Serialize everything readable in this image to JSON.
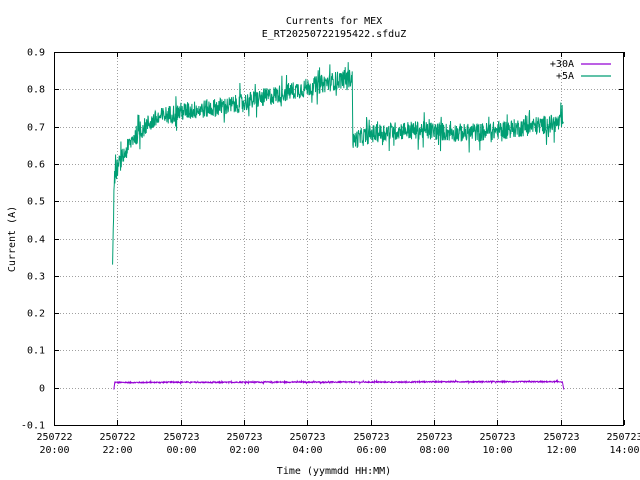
{
  "chart_data": {
    "type": "line",
    "title": "Currents for MEX",
    "subtitle": "E_RT20250722195422.sfduZ",
    "xlabel": "Time (yymmdd HH:MM)",
    "ylabel": "Current (A)",
    "xlim_hours": [
      20,
      38
    ],
    "ylim": [
      -0.1,
      0.9
    ],
    "grid": true,
    "legend_position": "top-right",
    "y_ticks": [
      "-0.1",
      "0",
      "0.1",
      "0.2",
      "0.3",
      "0.4",
      "0.5",
      "0.6",
      "0.7",
      "0.8",
      "0.9"
    ],
    "x_ticks": [
      {
        "date": "250722",
        "time": "20:00"
      },
      {
        "date": "250722",
        "time": "22:00"
      },
      {
        "date": "250723",
        "time": "00:00"
      },
      {
        "date": "250723",
        "time": "02:00"
      },
      {
        "date": "250723",
        "time": "04:00"
      },
      {
        "date": "250723",
        "time": "06:00"
      },
      {
        "date": "250723",
        "time": "08:00"
      },
      {
        "date": "250723",
        "time": "10:00"
      },
      {
        "date": "250723",
        "time": "12:00"
      },
      {
        "date": "250723",
        "time": "14:00"
      }
    ],
    "series": [
      {
        "name": "+30A",
        "color": "#9400d3",
        "x_hours": [
          21.89,
          21.92,
          22.0,
          23.0,
          24.0,
          25.0,
          26.0,
          27.0,
          28.0,
          29.0,
          30.0,
          31.0,
          32.0,
          33.0,
          34.0,
          35.0,
          36.0,
          36.05,
          36.1
        ],
        "values": [
          -0.005,
          0.015,
          0.014,
          0.014,
          0.015,
          0.014,
          0.015,
          0.015,
          0.015,
          0.015,
          0.015,
          0.015,
          0.016,
          0.016,
          0.016,
          0.016,
          0.016,
          0.016,
          -0.005
        ]
      },
      {
        "name": "+5A",
        "color": "#009e73",
        "x_hours": [
          21.85,
          21.9,
          22.0,
          22.25,
          22.5,
          23.0,
          23.5,
          24.0,
          24.5,
          25.0,
          25.5,
          26.0,
          26.5,
          27.0,
          27.5,
          28.0,
          28.5,
          29.0,
          29.42,
          29.44,
          29.5,
          30.0,
          30.5,
          31.0,
          31.5,
          32.0,
          32.5,
          33.0,
          33.5,
          34.0,
          34.5,
          35.0,
          35.5,
          36.0,
          36.1
        ],
        "values": [
          0.33,
          0.56,
          0.59,
          0.63,
          0.67,
          0.71,
          0.73,
          0.74,
          0.745,
          0.75,
          0.755,
          0.765,
          0.775,
          0.785,
          0.795,
          0.805,
          0.815,
          0.825,
          0.83,
          0.655,
          0.665,
          0.68,
          0.685,
          0.69,
          0.69,
          0.688,
          0.685,
          0.683,
          0.685,
          0.69,
          0.695,
          0.7,
          0.705,
          0.71,
          0.71
        ]
      }
    ]
  }
}
